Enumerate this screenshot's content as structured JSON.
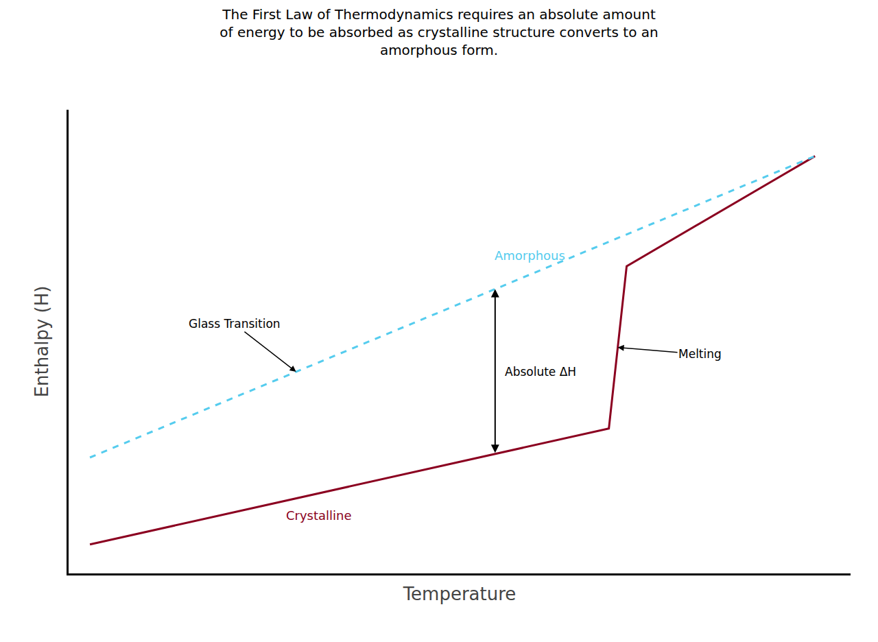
{
  "chart_data": {
    "type": "line",
    "title": "The First Law of Thermodynamics requires an absolute amount\nof energy to be absorbed as crystalline structure converts to an\namorphous form.",
    "xlabel": "Temperature",
    "ylabel": "Enthalpy (H)",
    "series": [
      {
        "name": "Crystalline",
        "color": "#8B0020",
        "line_style": "solid",
        "x": [
          0.3,
          7.6,
          7.85,
          10.5
        ],
        "values": [
          1.0,
          3.0,
          5.8,
          7.7
        ]
      },
      {
        "name": "Amorphous",
        "color": "#55CCEE",
        "line_style": "dashed",
        "x": [
          0.3,
          10.5
        ],
        "values": [
          2.5,
          7.7
        ]
      }
    ],
    "xlim": [
      0,
      11
    ],
    "ylim": [
      0.5,
      8.5
    ],
    "xticks": [],
    "yticks": [],
    "tick_labels": false,
    "grid": false,
    "annotations": [
      {
        "text": "Glass Transition",
        "x": 3.2
      },
      {
        "text": "Melting"
      },
      {
        "text": "Absolute ΔH",
        "x": 6.0
      }
    ]
  }
}
